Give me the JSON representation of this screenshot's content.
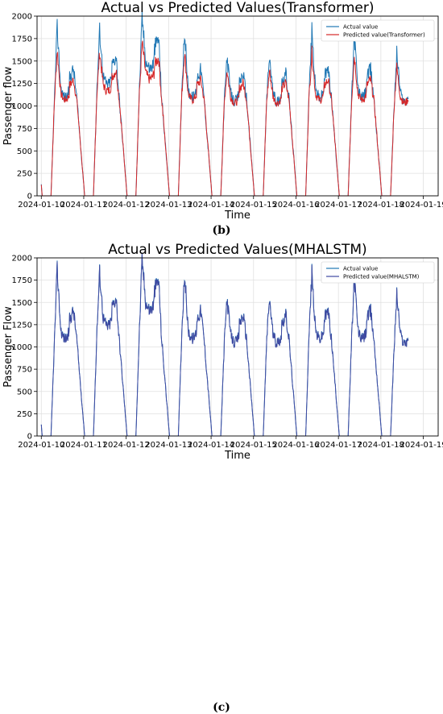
{
  "chart_data": [
    {
      "type": "line",
      "title": "Actual vs Predicted Values(Transformer)",
      "xlabel": "Time",
      "ylabel": "Passenger flow",
      "ylim": [
        0,
        2000
      ],
      "xlim": [
        "2024-01-10",
        "2024-01-19"
      ],
      "x_ticks": [
        "2024-01-10",
        "2024-01-11",
        "2024-01-12",
        "2024-01-13",
        "2024-01-14",
        "2024-01-15",
        "2024-01-16",
        "2024-01-17",
        "2024-01-18",
        "2024-01-19"
      ],
      "y_ticks": [
        0,
        250,
        500,
        750,
        1000,
        1250,
        1500,
        1750,
        2000
      ],
      "grid": true,
      "legend_position": "top-right",
      "daily_peaks": [
        {
          "day": "2024-01-10",
          "start": 1100,
          "max": 1880,
          "pm": 1300,
          "trough": 0
        },
        {
          "day": "2024-01-11",
          "start": 1200,
          "max": 1840,
          "pm": 1450,
          "trough": 0
        },
        {
          "day": "2024-01-12",
          "start": 1200,
          "max": 1980,
          "pm": 1650,
          "trough": 0
        },
        {
          "day": "2024-01-13",
          "start": 1200,
          "max": 1840,
          "pm": 1300,
          "trough": 0
        },
        {
          "day": "2024-01-14",
          "start": 1050,
          "max": 1560,
          "pm": 1250,
          "trough": 0
        },
        {
          "day": "2024-01-15",
          "start": 1100,
          "max": 1550,
          "pm": 1250,
          "trough": 0
        },
        {
          "day": "2024-01-16",
          "start": 1200,
          "max": 1830,
          "pm": 1300,
          "trough": 0
        },
        {
          "day": "2024-01-17",
          "start": 1100,
          "max": 1800,
          "pm": 1300,
          "trough": 0
        },
        {
          "day": "2024-01-18",
          "start": 1000,
          "max": 1600,
          "pm": 1250,
          "trough": null
        }
      ],
      "series": [
        {
          "name": "Actual value",
          "color": "#1f77b4"
        },
        {
          "name": "Predicted value(Transformer)",
          "color": "#d62728",
          "peak_scale": 0.84
        }
      ]
    },
    {
      "type": "line",
      "title": "Actual vs Predicted Values(MHALSTM)",
      "xlabel": "Time",
      "ylabel": "Passenger Flow",
      "ylim": [
        0,
        2000
      ],
      "xlim": [
        "2024-01-10",
        "2024-01-19"
      ],
      "x_ticks": [
        "2024-01-10",
        "2024-01-11",
        "2024-01-12",
        "2024-01-13",
        "2024-01-14",
        "2024-01-15",
        "2024-01-16",
        "2024-01-17",
        "2024-01-18",
        "2024-01-19"
      ],
      "y_ticks": [
        0,
        250,
        500,
        750,
        1000,
        1250,
        1500,
        1750,
        2000
      ],
      "grid": true,
      "legend_position": "top-right",
      "series": [
        {
          "name": "Actual value",
          "color": "#1f77b4"
        },
        {
          "name": "Predicted value(MHALSTM)",
          "color": "#3f4aa1",
          "peak_scale": 1.0
        }
      ]
    }
  ],
  "captions": {
    "b": "(b)",
    "c": "(c)"
  }
}
